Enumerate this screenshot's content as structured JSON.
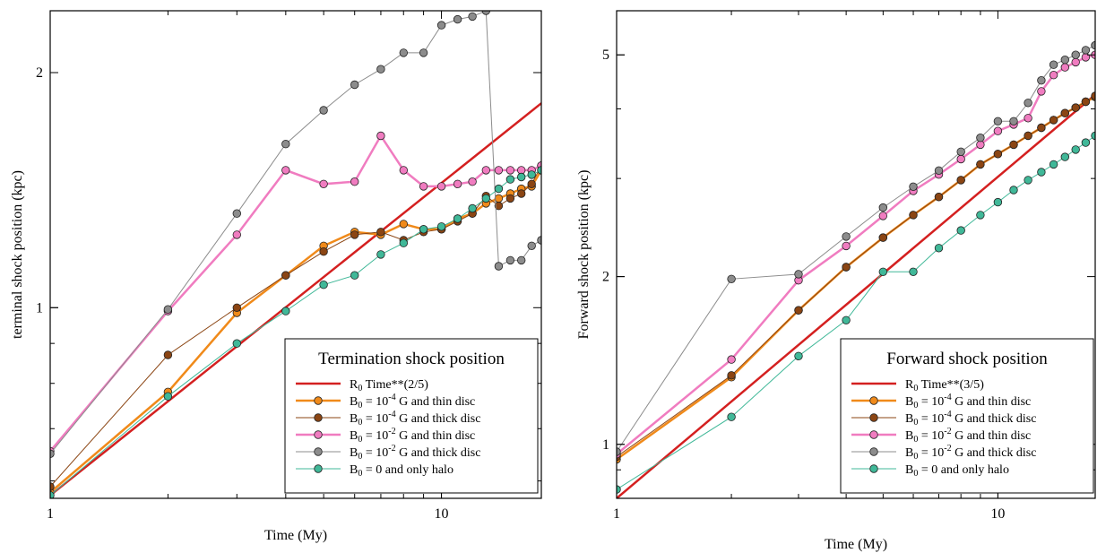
{
  "chart_data": [
    {
      "type": "line",
      "xscale": "log",
      "yscale": "log",
      "xlabel": "Time (My)",
      "ylabel": "terminal shock position (kpc)",
      "xlim": [
        1,
        18
      ],
      "ylim": [
        0.57,
        2.4
      ],
      "xticks": [
        1,
        10
      ],
      "xtick_labels": [
        "1",
        "10"
      ],
      "yticks": [
        1,
        2
      ],
      "ytick_labels": [
        "1",
        "2"
      ],
      "grid": false,
      "legend": {
        "title": "Termination shock position",
        "placement": "bottom-right",
        "entries": [
          {
            "base": "R",
            "sub": "0",
            "text": " Time**(2/5)"
          },
          {
            "base": "B",
            "sub": "0",
            "text": " = 10",
            "sup": "-4",
            "tail": " G and thin disc"
          },
          {
            "base": "B",
            "sub": "0",
            "text": " = 10",
            "sup": "-4",
            "tail": " G and thick disc"
          },
          {
            "base": "B",
            "sub": "0",
            "text": " = 10",
            "sup": "-2",
            "tail": " G and thin disc"
          },
          {
            "base": "B",
            "sub": "0",
            "text": " = 10",
            "sup": "-2",
            "tail": " G and thick disc"
          },
          {
            "base": "B",
            "sub": "0",
            "text": " = 0 and only halo"
          }
        ]
      },
      "series": [
        {
          "name": "R0 Time**(2/5)",
          "color": "#d42020",
          "width": 2.5,
          "markers": false,
          "x": [
            1,
            18
          ],
          "y": [
            0.575,
            1.827
          ]
        },
        {
          "name": "B0 = 10^-4 G and thin disc",
          "color": "#f08a1a",
          "width": 2.5,
          "markers": true,
          "x": [
            1,
            2,
            3,
            4,
            5,
            6,
            7,
            8,
            9,
            10,
            11,
            12,
            13,
            14,
            15,
            16,
            17,
            18
          ],
          "y": [
            0.58,
            0.78,
            0.985,
            1.1,
            1.2,
            1.25,
            1.24,
            1.28,
            1.26,
            1.26,
            1.3,
            1.32,
            1.36,
            1.38,
            1.4,
            1.42,
            1.43,
            1.5
          ]
        },
        {
          "name": "B0 = 10^-4 G and thick disc",
          "color": "#8b4513",
          "width": 1,
          "markers": true,
          "x": [
            1,
            2,
            3,
            4,
            5,
            6,
            7,
            8,
            9,
            10,
            11,
            12,
            13,
            14,
            15,
            16,
            17,
            18
          ],
          "y": [
            0.59,
            0.87,
            1.0,
            1.1,
            1.18,
            1.24,
            1.25,
            1.22,
            1.25,
            1.26,
            1.29,
            1.32,
            1.39,
            1.35,
            1.38,
            1.4,
            1.44,
            1.52
          ]
        },
        {
          "name": "B0 = 10^-2 G and thin disc",
          "color": "#f07cc0",
          "width": 2.5,
          "markers": true,
          "x": [
            1,
            2,
            3,
            4,
            5,
            6,
            7,
            8,
            9,
            10,
            11,
            12,
            13,
            14,
            15,
            16,
            17,
            18
          ],
          "y": [
            0.655,
            0.99,
            1.24,
            1.5,
            1.44,
            1.45,
            1.66,
            1.5,
            1.43,
            1.43,
            1.44,
            1.45,
            1.5,
            1.5,
            1.5,
            1.5,
            1.5,
            1.52
          ]
        },
        {
          "name": "B0 = 10^-2 G and thick disc",
          "color": "#8c8c8c",
          "width": 1,
          "markers": true,
          "x": [
            1,
            2,
            3,
            4,
            5,
            6,
            7,
            8,
            9,
            10,
            11,
            12,
            13,
            14,
            15,
            16,
            17,
            18
          ],
          "y": [
            0.65,
            0.995,
            1.32,
            1.62,
            1.79,
            1.93,
            2.02,
            2.12,
            2.12,
            2.3,
            2.34,
            2.36,
            2.4,
            1.13,
            1.15,
            1.15,
            1.2,
            1.22
          ]
        },
        {
          "name": "B0 = 0 and only halo",
          "color": "#40b898",
          "width": 1,
          "markers": true,
          "x": [
            1,
            2,
            3,
            4,
            5,
            6,
            7,
            8,
            9,
            10,
            11,
            12,
            13,
            14,
            15,
            16,
            17,
            18
          ],
          "y": [
            0.575,
            0.77,
            0.9,
            0.99,
            1.07,
            1.1,
            1.17,
            1.21,
            1.26,
            1.27,
            1.3,
            1.34,
            1.38,
            1.42,
            1.46,
            1.47,
            1.48,
            1.5
          ]
        }
      ]
    },
    {
      "type": "line",
      "xscale": "log",
      "yscale": "log",
      "xlabel": "Time (My)",
      "ylabel": "Forward shock position (kpc)",
      "xlim": [
        1,
        18
      ],
      "ylim": [
        0.8,
        6.0
      ],
      "xticks": [
        1,
        10
      ],
      "xtick_labels": [
        "1",
        "10"
      ],
      "yticks": [
        1,
        2,
        5
      ],
      "ytick_labels": [
        "1",
        "2",
        "5"
      ],
      "grid": false,
      "legend": {
        "title": "Forward shock position",
        "placement": "bottom-right",
        "entries": [
          {
            "base": "R",
            "sub": "0",
            "text": " Time**(3/5)"
          },
          {
            "base": "B",
            "sub": "0",
            "text": " = 10",
            "sup": "-4",
            "tail": " G and thin disc"
          },
          {
            "base": "B",
            "sub": "0",
            "text": " = 10",
            "sup": "-4",
            "tail": " G and thick disc"
          },
          {
            "base": "B",
            "sub": "0",
            "text": " = 10",
            "sup": "-2",
            "tail": " G and thin disc"
          },
          {
            "base": "B",
            "sub": "0",
            "text": " = 10",
            "sup": "-2",
            "tail": " G and thick disc"
          },
          {
            "base": "B",
            "sub": "0",
            "text": " = 0 and only halo"
          }
        ]
      },
      "series": [
        {
          "name": "R0 Time**(3/5)",
          "color": "#d42020",
          "width": 2.5,
          "markers": false,
          "x": [
            1,
            18
          ],
          "y": [
            0.8,
            4.24
          ]
        },
        {
          "name": "B0 = 10^-4 G and thin disc",
          "color": "#f08a1a",
          "width": 2.5,
          "markers": true,
          "x": [
            1,
            2,
            3,
            4,
            5,
            6,
            7,
            8,
            9,
            10,
            11,
            12,
            13,
            14,
            15,
            16,
            17,
            18
          ],
          "y": [
            0.94,
            1.32,
            1.74,
            2.08,
            2.35,
            2.58,
            2.78,
            2.98,
            3.18,
            3.32,
            3.45,
            3.58,
            3.7,
            3.82,
            3.93,
            4.02,
            4.12,
            4.2
          ]
        },
        {
          "name": "B0 = 10^-4 G and thick disc",
          "color": "#8b4513",
          "width": 1,
          "markers": true,
          "x": [
            1,
            2,
            3,
            4,
            5,
            6,
            7,
            8,
            9,
            10,
            11,
            12,
            13,
            14,
            15,
            16,
            17,
            18
          ],
          "y": [
            0.95,
            1.33,
            1.74,
            2.08,
            2.35,
            2.58,
            2.78,
            2.98,
            3.18,
            3.32,
            3.45,
            3.58,
            3.7,
            3.82,
            3.93,
            4.02,
            4.12,
            4.22
          ]
        },
        {
          "name": "B0 = 10^-2 G and thin disc",
          "color": "#f07cc0",
          "width": 2.5,
          "markers": true,
          "x": [
            1,
            2,
            3,
            4,
            5,
            6,
            7,
            8,
            9,
            10,
            11,
            12,
            13,
            14,
            15,
            16,
            17,
            18
          ],
          "y": [
            0.96,
            1.42,
            1.97,
            2.27,
            2.57,
            2.85,
            3.05,
            3.25,
            3.45,
            3.65,
            3.75,
            3.85,
            4.3,
            4.6,
            4.75,
            4.85,
            4.95,
            5.0
          ]
        },
        {
          "name": "B0 = 10^-2 G and thick disc",
          "color": "#8c8c8c",
          "width": 1,
          "markers": true,
          "x": [
            1,
            2,
            3,
            4,
            5,
            6,
            7,
            8,
            9,
            10,
            11,
            12,
            13,
            14,
            15,
            16,
            17,
            18
          ],
          "y": [
            0.97,
            1.98,
            2.02,
            2.36,
            2.66,
            2.9,
            3.1,
            3.35,
            3.55,
            3.8,
            3.8,
            4.1,
            4.5,
            4.8,
            4.9,
            5.0,
            5.1,
            5.2
          ]
        },
        {
          "name": "B0 = 0 and only halo",
          "color": "#40b898",
          "width": 1,
          "markers": true,
          "x": [
            1,
            2,
            3,
            4,
            5,
            6,
            7,
            8,
            9,
            10,
            11,
            12,
            13,
            14,
            15,
            16,
            17,
            18
          ],
          "y": [
            0.83,
            1.12,
            1.44,
            1.67,
            2.04,
            2.04,
            2.25,
            2.42,
            2.58,
            2.72,
            2.86,
            2.98,
            3.08,
            3.18,
            3.28,
            3.38,
            3.48,
            3.58
          ]
        }
      ]
    }
  ]
}
